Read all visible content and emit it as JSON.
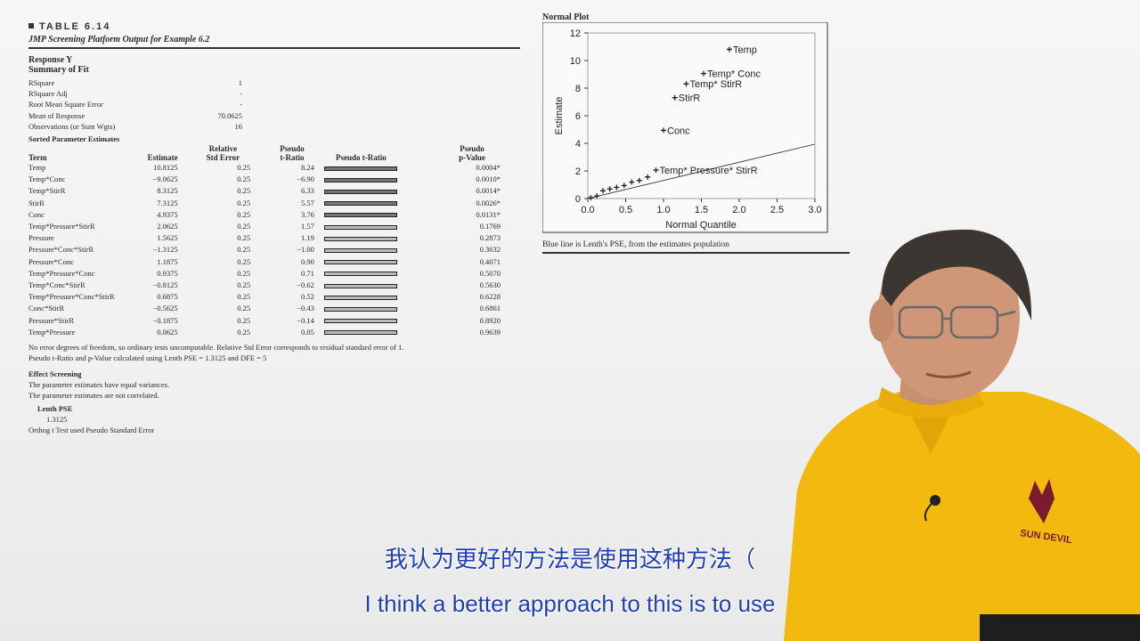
{
  "table": {
    "number": "TABLE 6.14",
    "title": "JMP Screening Platform Output for Example 6.2",
    "response": "Response Y",
    "summary_heading": "Summary of Fit",
    "summary": [
      {
        "label": "RSquare",
        "value": "1"
      },
      {
        "label": "RSquare Adj",
        "value": "-"
      },
      {
        "label": "Root Mean Square Error",
        "value": "-"
      },
      {
        "label": "Mean of Response",
        "value": "70.0625"
      },
      {
        "label": "Observations (or Sum Wgts)",
        "value": "16"
      }
    ],
    "sorted_heading": "Sorted Parameter Estimates",
    "columns": {
      "term": "Term",
      "estimate": "Estimate",
      "rse_1": "Relative",
      "rse_2": "Std Error",
      "pt_1": "Pseudo",
      "pt_2": "t-Ratio",
      "bar": "Pseudo t-Ratio",
      "pv_1": "Pseudo",
      "pv_2": "p-Value"
    },
    "rows": [
      {
        "term": "Temp",
        "estimate": "10.8125",
        "rse": "0.25",
        "pt": "8.24",
        "pv": "0.0004*",
        "bar_fraction": 1.0
      },
      {
        "term": "Temp*Conc",
        "estimate": "−9.0625",
        "rse": "0.25",
        "pt": "−6.90",
        "pv": "0.0010*",
        "bar_fraction": 0.84
      },
      {
        "term": "Temp*StirR",
        "estimate": "8.3125",
        "rse": "0.25",
        "pt": "6.33",
        "pv": "0.0014*",
        "bar_fraction": 0.77
      },
      {
        "term": "StirR",
        "estimate": "7.3125",
        "rse": "0.25",
        "pt": "5.57",
        "pv": "0.0026*",
        "bar_fraction": 0.68
      },
      {
        "term": "Conc",
        "estimate": "4.9375",
        "rse": "0.25",
        "pt": "3.76",
        "pv": "0.0131*",
        "bar_fraction": 0.46
      },
      {
        "term": "Temp*Pressure*StirR",
        "estimate": "2.0625",
        "rse": "0.25",
        "pt": "1.57",
        "pv": "0.1769",
        "bar_fraction": 0.19
      },
      {
        "term": "Pressure",
        "estimate": "1.5625",
        "rse": "0.25",
        "pt": "1.19",
        "pv": "0.2873",
        "bar_fraction": 0.14
      },
      {
        "term": "Pressure*Conc*StirR",
        "estimate": "−1.3125",
        "rse": "0.25",
        "pt": "−1.00",
        "pv": "0.3632",
        "bar_fraction": 0.12
      },
      {
        "term": "Pressure*Conc",
        "estimate": "1.1875",
        "rse": "0.25",
        "pt": "0.90",
        "pv": "0.4071",
        "bar_fraction": 0.11
      },
      {
        "term": "Temp*Pressure*Conc",
        "estimate": "0.9375",
        "rse": "0.25",
        "pt": "0.71",
        "pv": "0.5070",
        "bar_fraction": 0.09
      },
      {
        "term": "Temp*Conc*StirR",
        "estimate": "−0.8125",
        "rse": "0.25",
        "pt": "−0.62",
        "pv": "0.5630",
        "bar_fraction": 0.08
      },
      {
        "term": "Temp*Pressure*Conc*StirR",
        "estimate": "0.6875",
        "rse": "0.25",
        "pt": "0.52",
        "pv": "0.6228",
        "bar_fraction": 0.06
      },
      {
        "term": "Conc*StirR",
        "estimate": "−0.5625",
        "rse": "0.25",
        "pt": "−0.43",
        "pv": "0.6861",
        "bar_fraction": 0.05
      },
      {
        "term": "Pressure*StirR",
        "estimate": "−0.1875",
        "rse": "0.25",
        "pt": "−0.14",
        "pv": "0.8920",
        "bar_fraction": 0.02
      },
      {
        "term": "Temp*Pressure",
        "estimate": "0.0625",
        "rse": "0.25",
        "pt": "0.05",
        "pv": "0.9639",
        "bar_fraction": 0.01
      }
    ],
    "note_1": "No error degrees of freedom, so ordinary tests uncomputable. Relative Std Error corresponds to residual standard error of 1.",
    "note_2": "Pseudo t-Ratio and p-Value calculated using Lenth PSE = 1.3125 and DFE = 5",
    "effect_heading": "Effect Screening",
    "effect_1": "The parameter estimates have equal variances.",
    "effect_2": "The parameter estimates are not correlated.",
    "lenth_label": "Lenth PSE",
    "lenth_value": "1.3125",
    "orthog": "Orthog t Test used Pseudo Standard Error"
  },
  "normal_plot": {
    "title": "Normal Plot",
    "caption": "Blue line is Lenth's PSE, from the estimates population"
  },
  "chart_data": {
    "type": "scatter",
    "title": "Normal Plot",
    "xlabel": "Normal Quantile",
    "ylabel": "Estimate",
    "xlim": [
      0,
      3
    ],
    "ylim": [
      0,
      12
    ],
    "xticks": [
      "0.0",
      "0.5",
      "1.0",
      "1.5",
      "2.0",
      "2.5",
      "3.0"
    ],
    "yticks": [
      "0",
      "2",
      "4",
      "6",
      "8",
      "10",
      "12"
    ],
    "points": [
      {
        "x": 0.04,
        "y": 0.06,
        "label": ""
      },
      {
        "x": 0.12,
        "y": 0.19,
        "label": ""
      },
      {
        "x": 0.2,
        "y": 0.56,
        "label": ""
      },
      {
        "x": 0.29,
        "y": 0.69,
        "label": ""
      },
      {
        "x": 0.38,
        "y": 0.81,
        "label": ""
      },
      {
        "x": 0.48,
        "y": 0.94,
        "label": ""
      },
      {
        "x": 0.58,
        "y": 1.19,
        "label": ""
      },
      {
        "x": 0.68,
        "y": 1.31,
        "label": ""
      },
      {
        "x": 0.79,
        "y": 1.56,
        "label": ""
      },
      {
        "x": 0.9,
        "y": 2.06,
        "label": "Temp* Pressure* StirR"
      },
      {
        "x": 1.0,
        "y": 4.94,
        "label": "Conc"
      },
      {
        "x": 1.15,
        "y": 7.31,
        "label": "StirR"
      },
      {
        "x": 1.3,
        "y": 8.31,
        "label": "Temp* StirR"
      },
      {
        "x": 1.53,
        "y": 9.06,
        "label": "Temp* Conc"
      },
      {
        "x": 1.87,
        "y": 10.81,
        "label": "Temp"
      }
    ],
    "reference_line": {
      "x": [
        0,
        3
      ],
      "y": [
        0,
        3.94
      ],
      "color": "#4a4a4a"
    }
  },
  "subtitles": {
    "zh": "我认为更好的方法是使用这种方法（",
    "en": "I think a better approach to this is to use"
  },
  "colors": {
    "subtitle": "#1f3fb4",
    "shirt": "#f2b90f"
  }
}
